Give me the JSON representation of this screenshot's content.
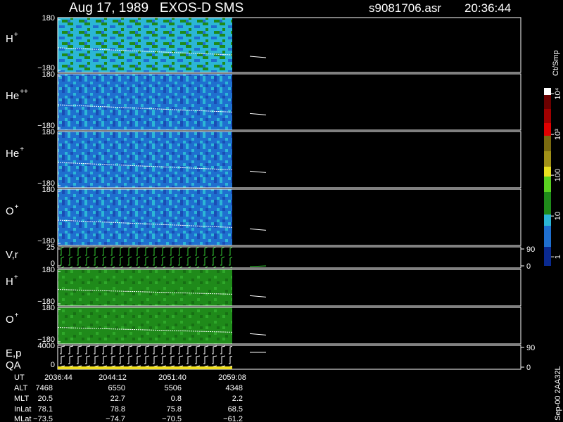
{
  "chart_data": {
    "type": "spectrogram",
    "title": "Aug 17, 1989   EXOS-D SMS",
    "file": "s9081706.asr",
    "time": "20:36:44",
    "panels": [
      {
        "label": "H",
        "sup": "+",
        "yticks": [
          180,
          {
            "value": -180,
            "label": "−180"
          }
        ]
      },
      {
        "label": "He",
        "sup": "++",
        "yticks": [
          180,
          {
            "value": -180,
            "label": "−180"
          }
        ]
      },
      {
        "label": "He",
        "sup": "+",
        "yticks": [
          180,
          {
            "value": -180,
            "label": "−180"
          }
        ]
      },
      {
        "label": "O",
        "sup": "+",
        "yticks": [
          180,
          {
            "value": -180,
            "label": "−180"
          }
        ]
      },
      {
        "label": "V,r",
        "yticks": [
          25,
          0
        ],
        "y2ticks": [
          90,
          0
        ]
      },
      {
        "label": "H",
        "sup": "+",
        "yticks": [
          180,
          {
            "value": -180,
            "label": "−180"
          }
        ]
      },
      {
        "label": "O",
        "sup": "+",
        "yticks": [
          180,
          {
            "value": -180,
            "label": "−180"
          }
        ]
      },
      {
        "label": "E,p",
        "label2": "QA",
        "yticks": [
          4000,
          0
        ],
        "y2ticks": [
          90,
          0
        ]
      }
    ],
    "colorbar": {
      "label": "Ct/Smp",
      "log": true,
      "clim": [
        0.6,
        13800
      ],
      "ticks": [
        1,
        10,
        100,
        {
          "value": 1000,
          "label": "10³"
        },
        {
          "value": 10000,
          "label": "10⁴"
        }
      ]
    },
    "ephemeris": {
      "labels": [
        "UT",
        "ALT",
        "MLT",
        "InLat",
        "MLat"
      ],
      "rows": [
        [
          "2036:44",
          "2044:12",
          "2051:40",
          "2059:08"
        ],
        [
          "7468",
          "6550",
          "5506",
          "4348"
        ],
        [
          "20.5",
          "22.7",
          "0.8",
          "2.2"
        ],
        [
          "78.1",
          "78.8",
          "75.8",
          "68.5"
        ],
        [
          "−73.5",
          "−74.7",
          "−70.5",
          "−61.2"
        ]
      ]
    },
    "footer": "Sep-00 2AA32L"
  }
}
